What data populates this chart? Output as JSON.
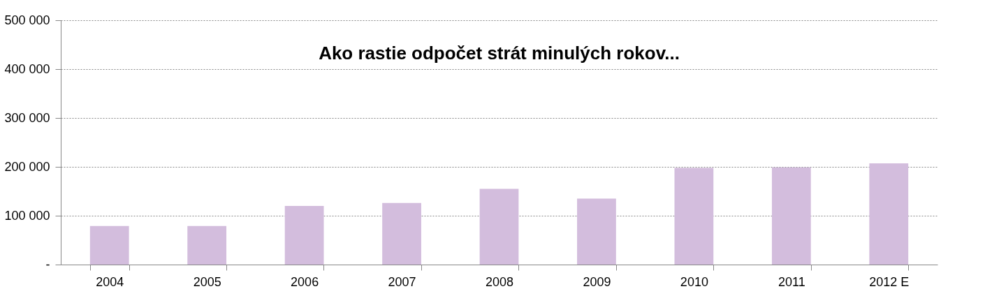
{
  "chart_data": {
    "type": "bar",
    "title": "Ako rastie odpočet strát minulých rokov...",
    "categories": [
      "2004",
      "2005",
      "2006",
      "2007",
      "2008",
      "2009",
      "2010",
      "2011",
      "2012 E"
    ],
    "values": [
      79000,
      79000,
      120000,
      126000,
      155000,
      135000,
      198000,
      199000,
      207000
    ],
    "color": "#d3bddd",
    "ylim": [
      0,
      500000
    ],
    "yticks": [
      {
        "value": 0,
        "label": "-"
      },
      {
        "value": 100000,
        "label": "100 000"
      },
      {
        "value": 200000,
        "label": "200 000"
      },
      {
        "value": 300000,
        "label": "300 000"
      },
      {
        "value": 400000,
        "label": "400 000"
      },
      {
        "value": 500000,
        "label": "500 000"
      }
    ],
    "grid": "y"
  }
}
